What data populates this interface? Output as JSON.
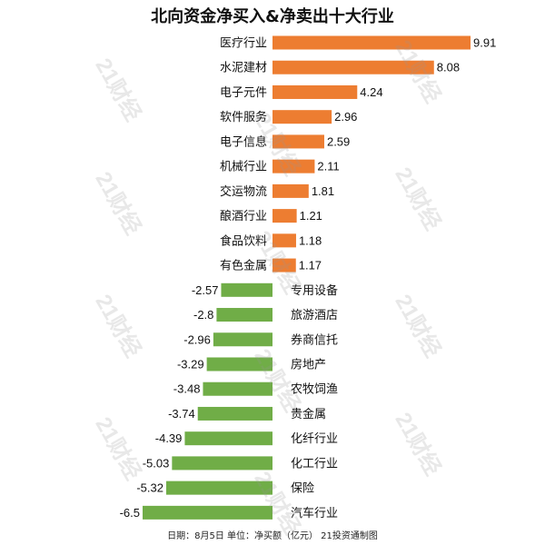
{
  "title": "北向资金净买入&净卖出十大行业",
  "footer": "日期：8月5日 单位：净买额（亿元） 21投资通制图",
  "watermark": "21财经",
  "colors": {
    "positive": "#ED7D31",
    "negative": "#70AD47"
  },
  "chart_data": {
    "type": "bar",
    "orientation": "horizontal",
    "title": "北向资金净买入&净卖出十大行业",
    "unit": "亿元",
    "categories": [
      "医疗行业",
      "水泥建材",
      "电子元件",
      "软件服务",
      "电子信息",
      "机械行业",
      "交运物流",
      "酿酒行业",
      "食品饮料",
      "有色金属",
      "专用设备",
      "旅游酒店",
      "券商信托",
      "房地产",
      "农牧饲渔",
      "贵金属",
      "化纤行业",
      "化工行业",
      "保险",
      "汽车行业"
    ],
    "values": [
      9.91,
      8.08,
      4.24,
      2.96,
      2.59,
      2.11,
      1.81,
      1.21,
      1.18,
      1.17,
      -2.57,
      -2.8,
      -2.96,
      -3.29,
      -3.48,
      -3.74,
      -4.39,
      -5.03,
      -5.32,
      -6.5
    ],
    "value_labels": [
      "9.91",
      "8.08",
      "4.24",
      "2.96",
      "2.59",
      "2.11",
      "1.81",
      "1.21",
      "1.18",
      "1.17",
      "-2.57",
      "-2.8",
      "-2.96",
      "-3.29",
      "-3.48",
      "-3.74",
      "-4.39",
      "-5.03",
      "-5.32",
      "-6.5"
    ],
    "xlim": [
      -6.5,
      9.91
    ],
    "grid": false,
    "legend": "none"
  }
}
